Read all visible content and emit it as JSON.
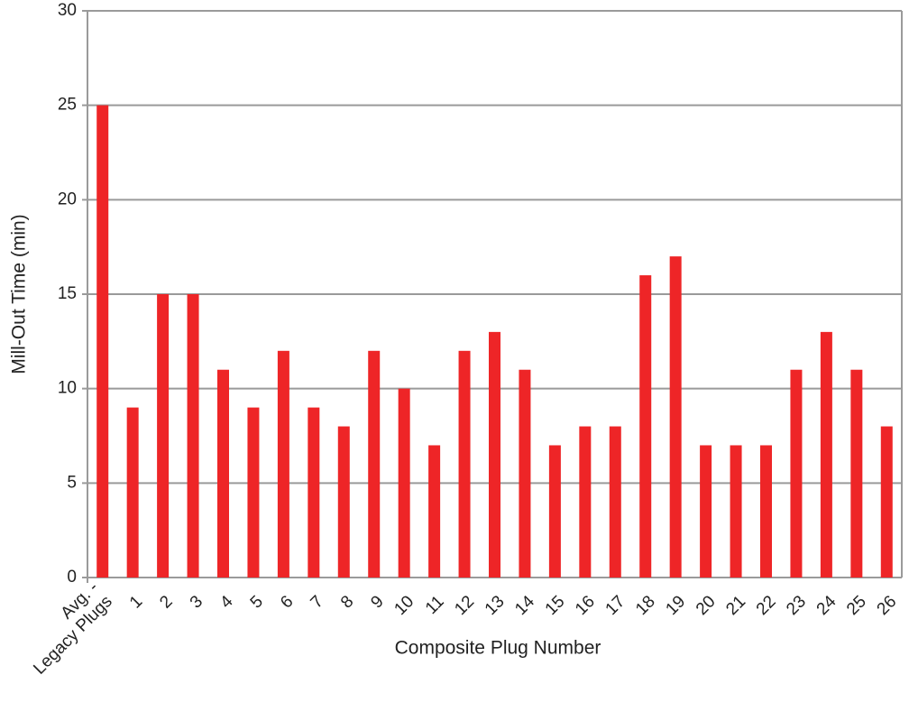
{
  "chart_data": {
    "type": "bar",
    "x_label": "Composite Plug Number",
    "y_label": "Mill-Out Time (min)",
    "categories": [
      "Avg. -\nLegacy Plugs",
      "1",
      "2",
      "3",
      "4",
      "5",
      "6",
      "7",
      "8",
      "9",
      "10",
      "11",
      "12",
      "13",
      "14",
      "15",
      "16",
      "17",
      "18",
      "19",
      "20",
      "21",
      "22",
      "23",
      "24",
      "25",
      "26"
    ],
    "values": [
      25,
      9,
      15,
      15,
      11,
      9,
      12,
      9,
      8,
      12,
      10,
      7,
      12,
      13,
      11,
      7,
      8,
      8,
      16,
      17,
      7,
      7,
      7,
      11,
      13,
      11,
      8
    ],
    "color": "#ee2527",
    "ylim": [
      0,
      30
    ],
    "yticks": [
      0,
      5,
      10,
      15,
      20,
      25,
      30
    ],
    "grid": true
  }
}
